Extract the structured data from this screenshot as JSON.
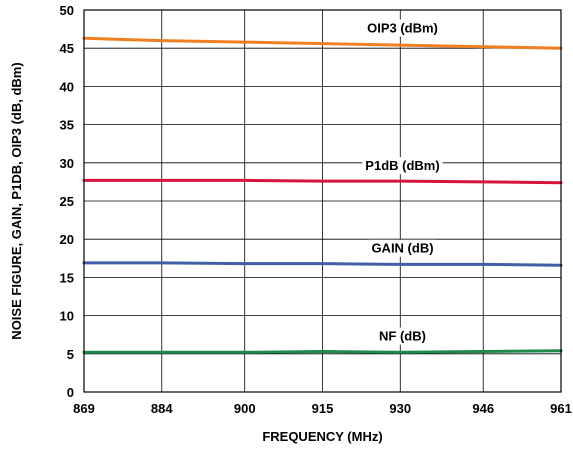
{
  "chart_data": {
    "type": "line",
    "xlabel": "FREQUENCY (MHz)",
    "ylabel": "NOISE FIGURE, GAIN, P1DB, OIP3 (dB, dBm)",
    "xlim": [
      869,
      961
    ],
    "ylim": [
      0,
      50
    ],
    "x_ticks": [
      869,
      884,
      900,
      915,
      930,
      946,
      961
    ],
    "y_ticks": [
      0,
      5,
      10,
      15,
      20,
      25,
      30,
      35,
      40,
      45,
      50
    ],
    "grid": true,
    "series": [
      {
        "name": "OIP3 (dBm)",
        "color": "#f07f22",
        "x": [
          869,
          884,
          900,
          915,
          930,
          946,
          961
        ],
        "values": [
          46.3,
          46.0,
          45.8,
          45.6,
          45.4,
          45.2,
          45.0
        ]
      },
      {
        "name": "P1dB (dBm)",
        "color": "#d7143c",
        "x": [
          869,
          884,
          900,
          915,
          930,
          946,
          961
        ],
        "values": [
          27.7,
          27.7,
          27.7,
          27.6,
          27.6,
          27.5,
          27.4
        ]
      },
      {
        "name": "GAIN (dB)",
        "color": "#3f5fa6",
        "x": [
          869,
          884,
          900,
          915,
          930,
          946,
          961
        ],
        "values": [
          16.9,
          16.9,
          16.8,
          16.8,
          16.7,
          16.7,
          16.6
        ]
      },
      {
        "name": "NF (dB)",
        "color": "#1f8a4c",
        "x": [
          869,
          884,
          900,
          915,
          930,
          946,
          961
        ],
        "values": [
          5.2,
          5.2,
          5.2,
          5.3,
          5.2,
          5.3,
          5.4
        ]
      }
    ]
  }
}
